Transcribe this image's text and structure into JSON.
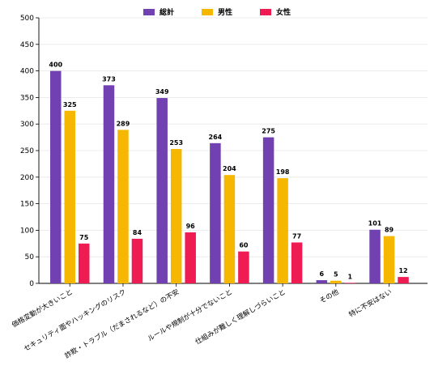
{
  "chart_data": {
    "type": "bar",
    "categories": [
      "価格変動が大きいこと",
      "セキュリティ面やハッキングのリスク",
      "詐欺・トラブル（だまされるなど）の不安",
      "ルールや規制が十分でないこと",
      "仕組みが難しく理解しづらいこと",
      "その他",
      "特に不安はない"
    ],
    "series": [
      {
        "name": "総計",
        "color": "#7141b1",
        "values": [
          400,
          373,
          349,
          264,
          275,
          6,
          101
        ]
      },
      {
        "name": "男性",
        "color": "#f5b700",
        "values": [
          325,
          289,
          253,
          204,
          198,
          5,
          89
        ]
      },
      {
        "name": "女性",
        "color": "#ee1c52",
        "values": [
          75,
          84,
          96,
          60,
          77,
          1,
          12
        ]
      }
    ],
    "ylim": [
      0,
      500
    ],
    "yticks": [
      0,
      50,
      100,
      150,
      200,
      250,
      300,
      350,
      400,
      450,
      500
    ],
    "grid": true,
    "legend": "top-center"
  }
}
